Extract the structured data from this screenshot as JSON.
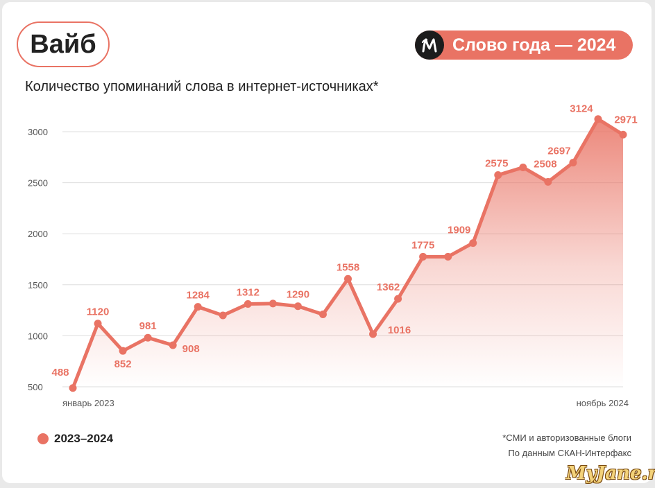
{
  "header": {
    "word": "Вайб",
    "badge_text": "Слово года — 2024",
    "logo_icon": "m-logo-icon",
    "subtitle": "Количество упоминаний слова в интернет-источниках*"
  },
  "legend": {
    "label": "2023–2024"
  },
  "notes": {
    "line1": "*СМИ и авторизованные блоги",
    "line2": "По данным СКАН-Интерфакс"
  },
  "watermark": "MyJane.ru",
  "colors": {
    "accent": "#e97364",
    "text": "#222222",
    "grid": "#dddddd",
    "tick": "#555555"
  },
  "chart_data": {
    "type": "area",
    "x_start_label": "январь 2023",
    "x_end_label": "ноябрь 2024",
    "yticks": [
      500,
      1000,
      1500,
      2000,
      2500,
      3000
    ],
    "ylim": [
      500,
      3000
    ],
    "grid": "horizontal",
    "series": [
      {
        "name": "2023–2024",
        "values": [
          488,
          1120,
          852,
          981,
          908,
          1284,
          1200,
          1312,
          1316,
          1290,
          1210,
          1558,
          1016,
          1362,
          1775,
          1775,
          1909,
          2575,
          2650,
          2508,
          2697,
          3124,
          2971
        ],
        "labels": [
          "488",
          "1120",
          "852",
          "981",
          "908",
          "1284",
          "",
          "1312",
          "",
          "1290",
          "",
          "1558",
          "1016",
          "1362",
          "1775",
          "",
          "1909",
          "2575",
          "",
          "2508",
          "2697",
          "3124",
          "2971"
        ]
      }
    ]
  }
}
